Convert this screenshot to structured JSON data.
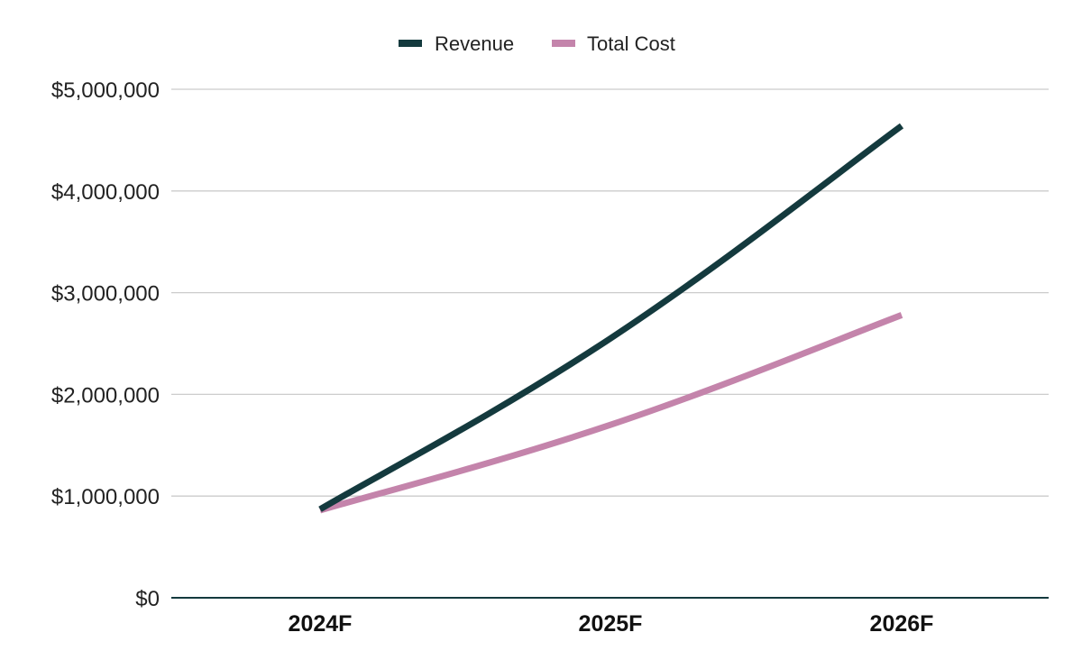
{
  "chart_data": {
    "type": "line",
    "title": "",
    "xlabel": "",
    "ylabel": "",
    "categories": [
      "2024F",
      "2025F",
      "2026F"
    ],
    "series": [
      {
        "name": "Revenue",
        "color": "#143a3e",
        "values": [
          870000,
          2550000,
          4640000
        ]
      },
      {
        "name": "Total Cost",
        "color": "#c484ab",
        "values": [
          860000,
          1700000,
          2780000
        ]
      }
    ],
    "ylim": [
      0,
      5000000
    ],
    "y_ticks": [
      {
        "value": 0,
        "label": "$0"
      },
      {
        "value": 1000000,
        "label": "$1,000,000"
      },
      {
        "value": 2000000,
        "label": "$2,000,000"
      },
      {
        "value": 3000000,
        "label": "$3,000,000"
      },
      {
        "value": 4000000,
        "label": "$4,000,000"
      },
      {
        "value": 5000000,
        "label": "$5,000,000"
      }
    ],
    "grid": true,
    "legend_position": "top-center",
    "colors": {
      "grid": "#cccccc",
      "axis": "#143a3e"
    }
  }
}
